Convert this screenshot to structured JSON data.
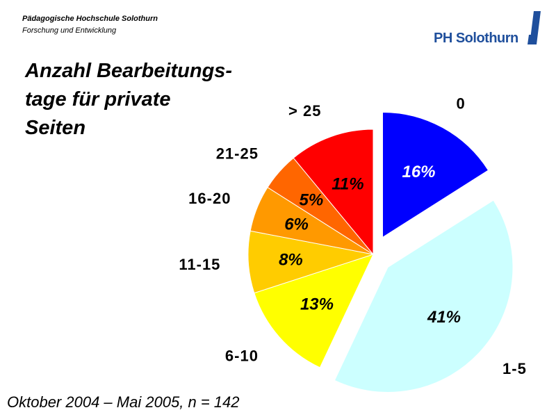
{
  "header": {
    "institution": "Pädagogische Hochschule Solothurn",
    "department": "Forschung und Entwicklung",
    "logo_text": "PH Solothurn"
  },
  "title_lines": [
    "Anzahl Bearbeitungs-",
    "tage für private",
    "Seiten"
  ],
  "footer": "Oktober 2004 – Mai 2005, n = 142",
  "colors": {
    "logo_blue": "#1f4f9c",
    "slice_0": "#0000ff",
    "slice_1_5": "#ccffff",
    "slice_6_10": "#ffff00",
    "slice_11_15": "#ffcc00",
    "slice_16_20": "#ff9900",
    "slice_21_25": "#ff6600",
    "slice_gt25": "#ff0000"
  },
  "chart_data": {
    "type": "pie",
    "title": "Anzahl Bearbeitungstage für private Seiten",
    "slices": [
      {
        "label": "0",
        "value": 16,
        "value_label": "16%",
        "color": "#0000ff",
        "exploded": true
      },
      {
        "label": "1-5",
        "value": 41,
        "value_label": "41%",
        "color": "#ccffff",
        "exploded": true
      },
      {
        "label": "6-10",
        "value": 13,
        "value_label": "13%",
        "color": "#ffff00",
        "exploded": false
      },
      {
        "label": "11-15",
        "value": 8,
        "value_label": "8%",
        "color": "#ffcc00",
        "exploded": false
      },
      {
        "label": "16-20",
        "value": 6,
        "value_label": "6%",
        "color": "#ff9900",
        "exploded": false
      },
      {
        "label": "21-25",
        "value": 5,
        "value_label": "5%",
        "color": "#ff6600",
        "exploded": false
      },
      {
        "label": "> 25",
        "value": 11,
        "value_label": "11%",
        "color": "#ff0000",
        "exploded": false
      }
    ],
    "legend": "none"
  }
}
